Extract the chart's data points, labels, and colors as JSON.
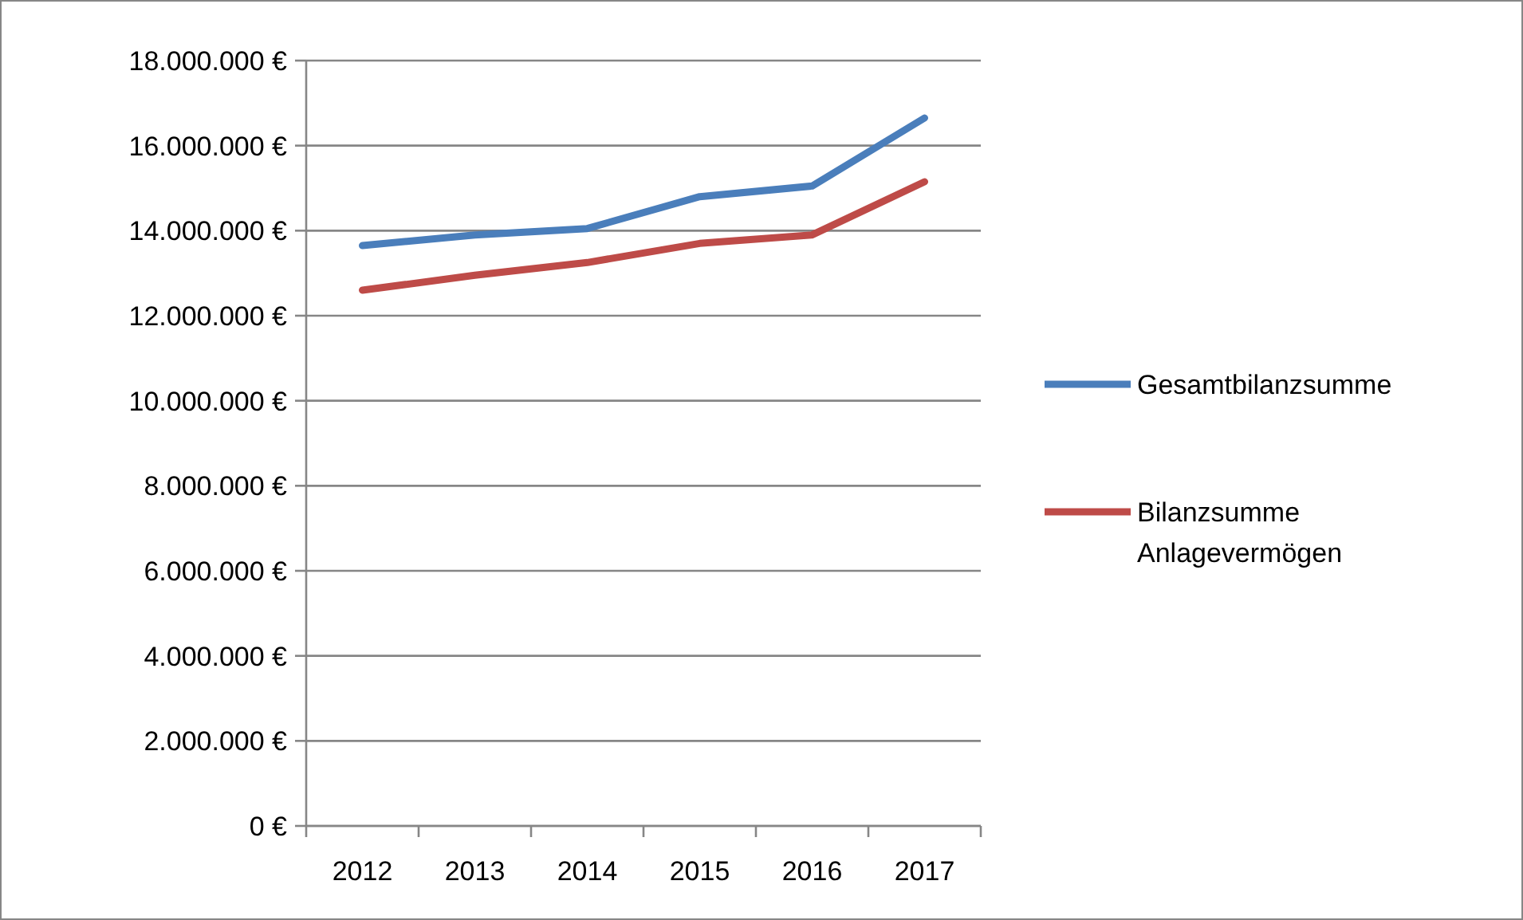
{
  "chart_data": {
    "type": "line",
    "categories": [
      "2012",
      "2013",
      "2014",
      "2015",
      "2016",
      "2017"
    ],
    "series": [
      {
        "name": "Gesamtbilanzsumme",
        "color": "#4a7ebb",
        "values": [
          13650000,
          13900000,
          14050000,
          14800000,
          15050000,
          16650000
        ]
      },
      {
        "name": "Bilanzsumme Anlagevermögen",
        "color": "#be4b48",
        "values": [
          12600000,
          12950000,
          13250000,
          13700000,
          13900000,
          15150000
        ]
      }
    ],
    "ylim": [
      0,
      18000000
    ],
    "yticks": [
      {
        "value": 0,
        "label": "0 €"
      },
      {
        "value": 2000000,
        "label": "2.000.000 €"
      },
      {
        "value": 4000000,
        "label": "4.000.000 €"
      },
      {
        "value": 6000000,
        "label": "6.000.000 €"
      },
      {
        "value": 8000000,
        "label": "8.000.000 €"
      },
      {
        "value": 10000000,
        "label": "10.000.000 €"
      },
      {
        "value": 12000000,
        "label": "12.000.000 €"
      },
      {
        "value": 14000000,
        "label": "14.000.000 €"
      },
      {
        "value": 16000000,
        "label": "16.000.000 €"
      },
      {
        "value": 18000000,
        "label": "18.000.000 €"
      }
    ],
    "grid": "y",
    "legend": "right",
    "marker": "none",
    "line_style": "solid"
  }
}
